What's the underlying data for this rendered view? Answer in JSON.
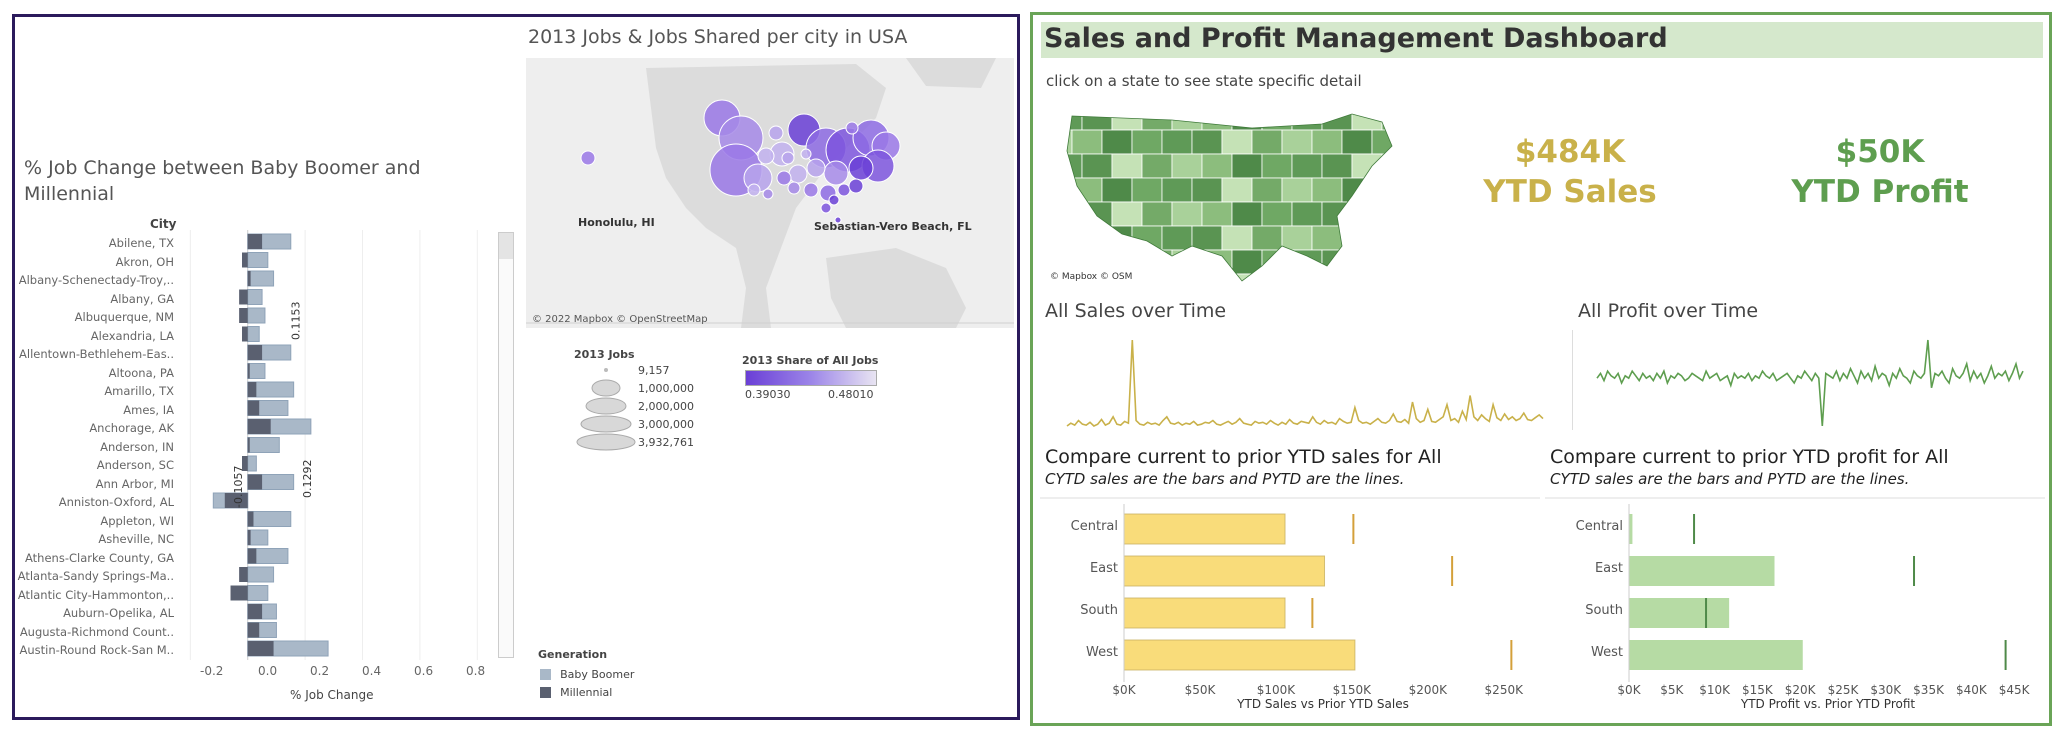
{
  "left": {
    "jobchange": {
      "title": "% Job Change between Baby Boomer and Millennial",
      "city_header": "City",
      "xlabel": "% Job Change",
      "x_ticks": [
        "-0.2",
        "0.0",
        "0.2",
        "0.4",
        "0.6",
        "0.8"
      ],
      "legend_title": "Generation",
      "legend": [
        "Baby Boomer",
        "Millennial"
      ]
    },
    "map": {
      "title": "2013 Jobs & Jobs Shared per city in USA",
      "label_honolulu": "Honolulu, HI",
      "label_sebastian": "Sebastian-Vero Beach, FL",
      "attribution": "© 2022 Mapbox © OpenStreetMap"
    },
    "size_legend": {
      "title": "2013 Jobs",
      "items": [
        "9,157",
        "1,000,000",
        "2,000,000",
        "3,000,000",
        "3,932,761"
      ]
    },
    "color_legend": {
      "title": "2013 Share of All Jobs",
      "min": "0.39030",
      "max": "0.48010"
    }
  },
  "right": {
    "title": "Sales and Profit Management Dashboard",
    "subtitle": "click on a state to see state specific detail",
    "map_attribution": "© Mapbox © OSM",
    "kpi_sales_value": "$484K",
    "kpi_sales_label": "YTD Sales",
    "kpi_profit_value": "$50K",
    "kpi_profit_label": "YTD Profit",
    "sales_time_title": "All Sales over Time",
    "profit_time_title": "All Profit over Time",
    "sales_compare_title": "Compare current to prior YTD sales for All",
    "sales_compare_note": "CYTD sales are the bars and PYTD are the lines.",
    "profit_compare_title": "Compare current to prior YTD profit for All",
    "profit_compare_note": "CYTD sales are the bars and PYTD are the lines.",
    "sales_xlabel": "YTD Sales vs Prior YTD Sales",
    "profit_xlabel": "YTD Profit vs. Prior YTD Profit",
    "sales_ticks": [
      "$0K",
      "$50K",
      "$100K",
      "$150K",
      "$200K",
      "$250K"
    ],
    "profit_ticks": [
      "$0K",
      "$5K",
      "$10K",
      "$15K",
      "$20K",
      "$25K",
      "$30K",
      "$35K",
      "$40K",
      "$45K"
    ]
  },
  "colors": {
    "left_border": "#2b1a5c",
    "right_border": "#6aa457",
    "title_band": "#d5e8cc",
    "sales_gold": "#c9b14a",
    "profit_green": "#5e9e4f",
    "sales_bar": "#f9dc7a",
    "profit_bar": "#b6dba4",
    "boomer": "#a9b8c8",
    "millennial": "#5a6070"
  },
  "chart_data": [
    {
      "type": "bar",
      "title": "% Job Change between Baby Boomer and Millennial",
      "xlabel": "% Job Change",
      "ylabel": "City",
      "xlim": [
        -0.25,
        0.9
      ],
      "categories": [
        "Abilene, TX",
        "Akron, OH",
        "Albany-Schenectady-Troy,..",
        "Albany, GA",
        "Albuquerque, NM",
        "Alexandria, LA",
        "Allentown-Bethlehem-Eas..",
        "Altoona, PA",
        "Amarillo, TX",
        "Ames, IA",
        "Anchorage, AK",
        "Anderson, IN",
        "Anderson, SC",
        "Ann Arbor, MI",
        "Anniston-Oxford, AL",
        "Appleton, WI",
        "Asheville, NC",
        "Athens-Clarke County, GA",
        "Atlanta-Sandy Springs-Ma..",
        "Atlantic City-Hammonton,..",
        "Auburn-Opelika, AL",
        "Augusta-Richmond Count..",
        "Austin-Round Rock-San M.."
      ],
      "series": [
        {
          "name": "Baby Boomer",
          "values": [
            0.15,
            0.07,
            0.09,
            0.05,
            0.06,
            0.04,
            0.15,
            0.06,
            0.16,
            0.14,
            0.22,
            0.11,
            0.03,
            0.16,
            -0.12,
            0.15,
            0.07,
            0.14,
            0.09,
            0.07,
            0.1,
            0.1,
            0.28
          ]
        },
        {
          "name": "Millennial",
          "values": [
            0.05,
            -0.02,
            0.01,
            -0.03,
            -0.03,
            -0.02,
            0.05,
            0.0,
            0.03,
            0.04,
            0.08,
            0.0,
            -0.02,
            0.05,
            -0.08,
            0.02,
            0.01,
            0.03,
            -0.03,
            -0.06,
            0.05,
            0.04,
            0.09
          ]
        }
      ],
      "annotations": [
        "0.1153",
        "0.1292",
        "-0.1057"
      ]
    },
    {
      "type": "line",
      "title": "All Sales over Time",
      "values": [
        2,
        5,
        3,
        8,
        4,
        3,
        6,
        2,
        4,
        9,
        3,
        5,
        12,
        4,
        3,
        7,
        5,
        95,
        8,
        4,
        3,
        6,
        4,
        5,
        3,
        8,
        12,
        5,
        4,
        6,
        3,
        5,
        4,
        7,
        3,
        4,
        6,
        5,
        8,
        4,
        3,
        5,
        7,
        4,
        6,
        10,
        5,
        4,
        3,
        7,
        5,
        6,
        4,
        8,
        5,
        3,
        6,
        4,
        9,
        5,
        4,
        7,
        6,
        5,
        12,
        6,
        4,
        8,
        5,
        6,
        4,
        10,
        7,
        5,
        6,
        22,
        8,
        5,
        6,
        4,
        7,
        10,
        6,
        5,
        8,
        15,
        7,
        6,
        9,
        5,
        28,
        10,
        6,
        8,
        20,
        7,
        6,
        9,
        12,
        25,
        8,
        10,
        6,
        18,
        9,
        35,
        12,
        8,
        14,
        10,
        7,
        25,
        11,
        8,
        15,
        9,
        12,
        8,
        10,
        16,
        9,
        8,
        11,
        14,
        10
      ]
    },
    {
      "type": "line",
      "title": "All Profit over Time",
      "values": [
        0,
        2,
        -1,
        3,
        1,
        0,
        2,
        -2,
        1,
        0,
        3,
        1,
        -1,
        2,
        0,
        1,
        -1,
        2,
        0,
        3,
        -2,
        1,
        0,
        2,
        1,
        -1,
        0,
        2,
        1,
        0,
        -1,
        3,
        0,
        1,
        2,
        -1,
        0,
        1,
        -3,
        2,
        0,
        1,
        0,
        2,
        -1,
        1,
        0,
        3,
        1,
        0,
        2,
        -1,
        0,
        1,
        2,
        0,
        -2,
        1,
        0,
        3,
        1,
        -1,
        2,
        0,
        -20,
        2,
        1,
        0,
        3,
        -1,
        2,
        0,
        4,
        1,
        -2,
        3,
        0,
        2,
        -1,
        5,
        0,
        2,
        1,
        -3,
        2,
        0,
        4,
        1,
        0,
        -2,
        3,
        1,
        0,
        2,
        16,
        -4,
        2,
        1,
        3,
        0,
        -2,
        4,
        1,
        0,
        2,
        6,
        -1,
        3,
        0,
        2,
        -2,
        1,
        5,
        0,
        2,
        1,
        3,
        -1,
        2,
        6,
        0,
        3
      ]
    },
    {
      "type": "bar",
      "title": "Compare current to prior YTD sales for All",
      "xlabel": "YTD Sales vs Prior YTD Sales",
      "xlim": [
        0,
        262000
      ],
      "categories": [
        "Central",
        "East",
        "South",
        "West"
      ],
      "series": [
        {
          "name": "CYTD",
          "values": [
            106000,
            132000,
            106000,
            152000
          ]
        },
        {
          "name": "PYTD",
          "values": [
            151000,
            216000,
            124000,
            255000
          ]
        }
      ]
    },
    {
      "type": "bar",
      "title": "Compare current to prior YTD profit for All",
      "xlabel": "YTD Profit vs. Prior YTD Profit",
      "xlim": [
        0,
        46500
      ],
      "categories": [
        "Central",
        "East",
        "South",
        "West"
      ],
      "series": [
        {
          "name": "CYTD",
          "values": [
            400,
            17000,
            11700,
            20300
          ]
        },
        {
          "name": "PYTD",
          "values": [
            7600,
            33300,
            9000,
            44000
          ]
        }
      ]
    }
  ]
}
